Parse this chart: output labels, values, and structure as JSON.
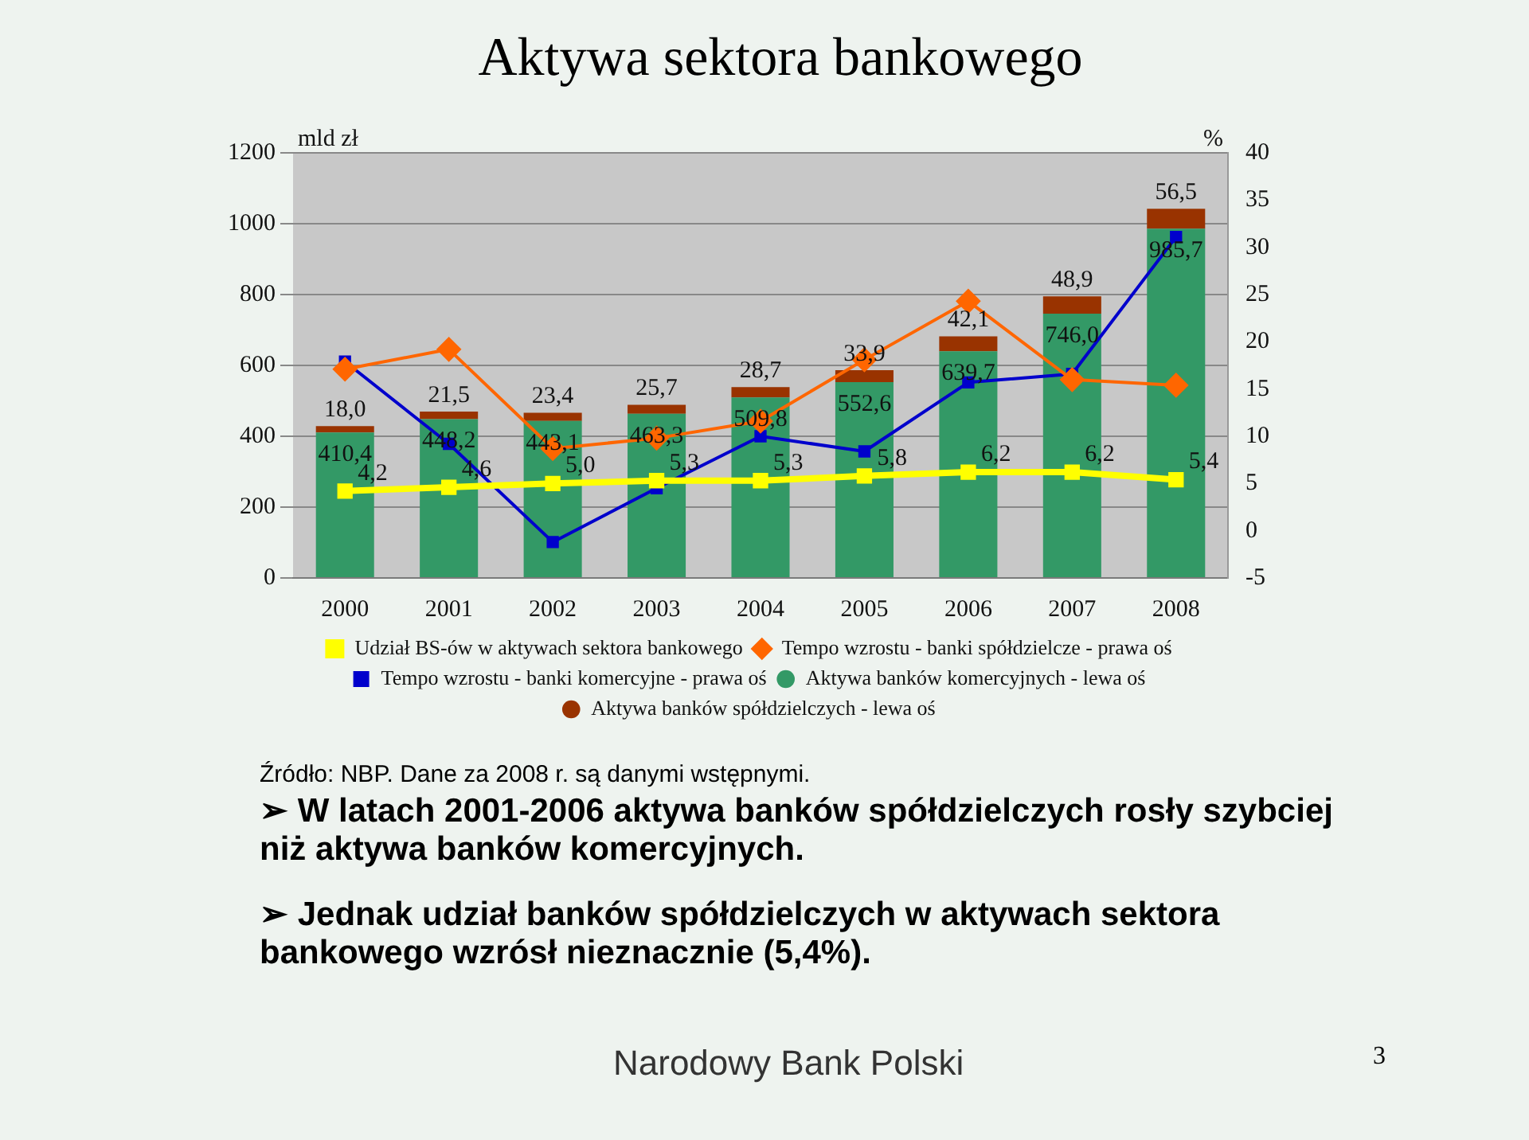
{
  "chart_data": {
    "type": "bar",
    "title": "Aktywa sektora bankowego",
    "ylabel": "mld zł",
    "y2label": "%",
    "categories": [
      "2000",
      "2001",
      "2002",
      "2003",
      "2004",
      "2005",
      "2006",
      "2007",
      "2008"
    ],
    "stacked": true,
    "grid": "y",
    "legend": "bottom",
    "ylim": [
      0,
      1200
    ],
    "yticks": [
      0,
      200,
      400,
      600,
      800,
      1000,
      1200
    ],
    "y2lim": [
      -5,
      40
    ],
    "y2ticks": [
      -5,
      0,
      5,
      10,
      15,
      20,
      25,
      30,
      35,
      40
    ],
    "series": [
      {
        "name": "Aktywa banków komercyjnych - lewa oś",
        "color": "#339966",
        "values": [
          410.4,
          448.2,
          443.1,
          463.3,
          509.8,
          552.6,
          639.7,
          746.0,
          985.7
        ],
        "value_labels": [
          "410,4",
          "448,2",
          "443,1",
          "463,3",
          "509,8",
          "552,6",
          "639,7",
          "746,0",
          "985,7"
        ]
      },
      {
        "name": "Aktywa banków spółdzielczych - lewa oś",
        "color": "#993300",
        "values": [
          18.0,
          21.5,
          23.4,
          25.7,
          28.7,
          33.9,
          42.1,
          48.9,
          56.5
        ],
        "value_labels": [
          "18,0",
          "21,5",
          "23,4",
          "25,7",
          "28,7",
          "33,9",
          "42,1",
          "48,9",
          "56,5"
        ]
      },
      {
        "name": "Udział BS-ów w aktywach sektora bankowego",
        "type": "line",
        "axis": "y2",
        "color": "#ffff00",
        "marker": "square",
        "values": [
          4.2,
          4.6,
          5.0,
          5.3,
          5.3,
          5.8,
          6.2,
          6.2,
          5.4
        ],
        "value_labels": [
          "4,2",
          "4,6",
          "5,0",
          "5,3",
          "5,3",
          "5,8",
          "6,2",
          "6,2",
          "5,4"
        ]
      },
      {
        "name": "Tempo wzrostu - banki spółdzielcze - prawa oś",
        "type": "line",
        "axis": "y2",
        "color": "#ff6600",
        "marker": "diamond",
        "values": [
          17.1,
          19.2,
          8.7,
          9.8,
          11.6,
          18.1,
          24.3,
          16.0,
          15.4
        ]
      },
      {
        "name": "Tempo wzrostu - banki komercyjne - prawa oś",
        "type": "line",
        "axis": "y2",
        "color": "#0000cc",
        "marker": "square",
        "values": [
          17.9,
          9.2,
          -1.2,
          4.5,
          10.0,
          8.4,
          15.7,
          16.6,
          31.1
        ]
      }
    ],
    "annotations": [
      "Źródło: NBP. Dane za 2008 r. są danymi wstępnymi.",
      "➢ W latach 2001-2006 aktywa banków spółdzielczych rosły szybciej niż aktywa banków komercyjnych.",
      "➢ Jednak udział banków spółdzielczych w aktywach sektora bankowego wzrósł nieznacznie (5,4%).",
      "Narodowy Bank Polski",
      "3"
    ]
  }
}
